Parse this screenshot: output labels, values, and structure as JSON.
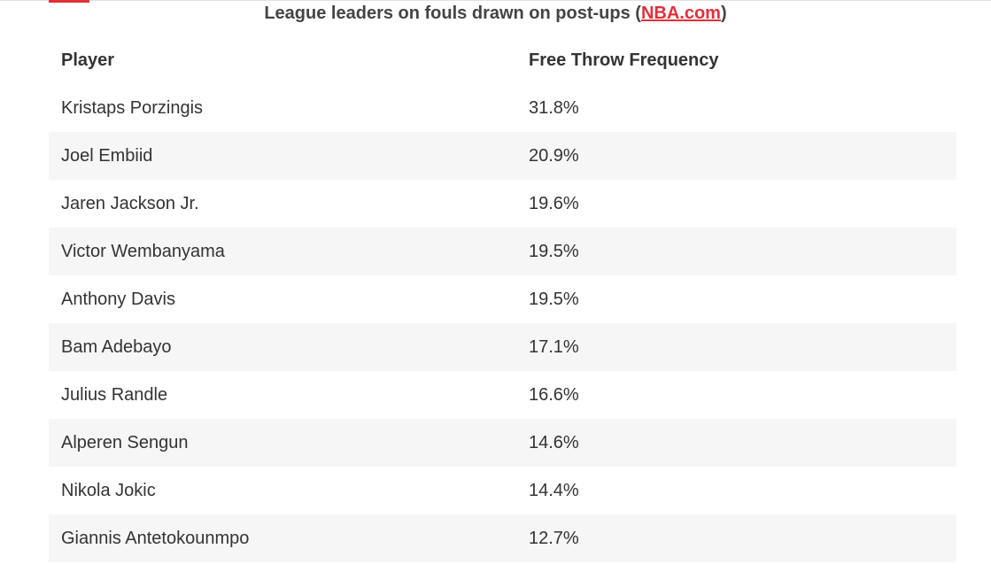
{
  "caption": {
    "title": "League leaders on fouls drawn on post-ups (",
    "link_text": "NBA.com",
    "close": ")"
  },
  "table": {
    "columns": [
      "Player",
      "Free Throw Frequency"
    ],
    "rows": [
      {
        "player": "Kristaps Porzingis",
        "freq": "31.8%"
      },
      {
        "player": "Joel Embiid",
        "freq": "20.9%"
      },
      {
        "player": "Jaren Jackson Jr.",
        "freq": "19.6%"
      },
      {
        "player": "Victor Wembanyama",
        "freq": "19.5%"
      },
      {
        "player": "Anthony Davis",
        "freq": "19.5%"
      },
      {
        "player": "Bam Adebayo",
        "freq": "17.1%"
      },
      {
        "player": "Julius Randle",
        "freq": "16.6%"
      },
      {
        "player": "Alperen Sengun",
        "freq": "14.6%"
      },
      {
        "player": "Nikola Jokic",
        "freq": "14.4%"
      },
      {
        "player": "Giannis Antetokounmpo",
        "freq": "12.7%"
      }
    ]
  },
  "colors": {
    "accent": "#e0303a",
    "stripe": "#f6f6f6",
    "text": "#333333"
  }
}
